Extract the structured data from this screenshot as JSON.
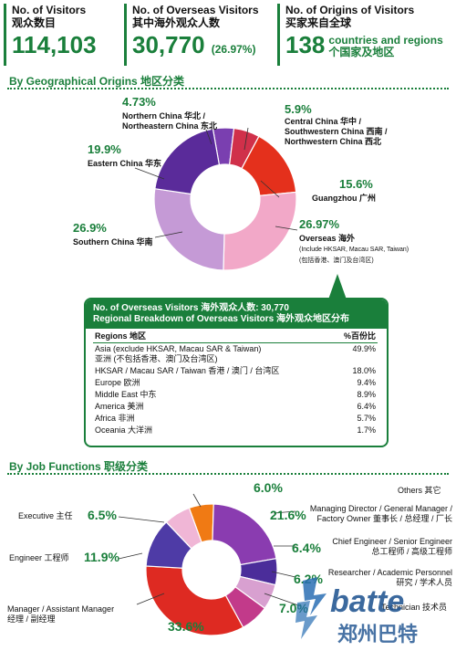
{
  "stats": [
    {
      "label1": "No. of Visitors",
      "label2": "观众数目",
      "value": "114,103"
    },
    {
      "label1": "No. of Overseas Visitors",
      "label2": "其中海外观众人数",
      "value": "30,770",
      "pct": "(26.97%)"
    },
    {
      "label1": "No. of Origins of Visitors",
      "label2": "买家来自全球",
      "value": "138",
      "suffix1": "countries and regions",
      "suffix2": "个国家及地区"
    }
  ],
  "sections": {
    "geo": "By Geographical Origins 地区分类",
    "job": "By Job Functions 职级分类"
  },
  "chart_data": [
    {
      "type": "pie",
      "donut": true,
      "slices": [
        {
          "label1": "Northern China 华北 /",
          "label2": "Northeastern China 东北",
          "value": 4.73,
          "text": "4.73%",
          "color": "#7a3fb0"
        },
        {
          "label1": "Central China 华中 /",
          "label2": "Southwestern China 西南 /",
          "label3": "Northwestern China 西北",
          "value": 5.9,
          "text": "5.9%",
          "color": "#d0304a"
        },
        {
          "label1": "Guangzhou 广州",
          "value": 15.6,
          "text": "15.6%",
          "color": "#e4301c"
        },
        {
          "label1": "Overseas 海外",
          "label2": "(Include HKSAR, Macau SAR, Taiwan)",
          "label3": "(包括香港、澳门及台湾区)",
          "value": 26.97,
          "text": "26.97%",
          "color": "#f2a8c8"
        },
        {
          "label1": "Southern China 华南",
          "value": 26.9,
          "text": "26.9%",
          "color": "#c59ad6"
        },
        {
          "label1": "Eastern China 华东",
          "value": 19.9,
          "text": "19.9%",
          "color": "#5a2b9a"
        }
      ]
    },
    {
      "type": "pie",
      "donut": true,
      "slices": [
        {
          "label1": "Others 其它",
          "value": 6.0,
          "text": "6.0%",
          "color": "#f07a14"
        },
        {
          "label1": "Managing Director / General Manager /",
          "label2": "Factory Owner 董事长 / 总经理 / 厂长",
          "value": 21.6,
          "text": "21.6%",
          "color": "#8a3cb0"
        },
        {
          "label1": "Chief Engineer / Senior Engineer",
          "label2": "总工程师 / 高级工程师",
          "value": 6.4,
          "text": "6.4%",
          "color": "#4b2d9a"
        },
        {
          "label1": "Researcher / Academic Personnel",
          "label2": "研究 / 学术人员",
          "value": 6.2,
          "text": "6.2%",
          "color": "#d8a0d0"
        },
        {
          "label1": "Technician 技术员",
          "value": 7.0,
          "text": "7.0%",
          "color": "#c23a8a"
        },
        {
          "label1": "Manager / Assistant Manager",
          "label2": "经理 / 副经理",
          "value": 33.6,
          "text": "33.6%",
          "color": "#de2a22"
        },
        {
          "label1": "Engineer 工程师",
          "value": 11.9,
          "text": "11.9%",
          "color": "#4e3ba6"
        },
        {
          "label1": "Executive 主任",
          "value": 6.5,
          "text": "6.5%",
          "color": "#f0b6d6"
        }
      ]
    },
    {
      "type": "table",
      "header1": "No. of Overseas Visitors 海外观众人数: 30,770",
      "header2": "Regional Breakdown of Overseas Visitors 海外观众地区分布",
      "columns": [
        "Regions 地区",
        "%百份比"
      ],
      "rows": [
        {
          "r1": "Asia (exclude HKSAR, Macau SAR & Taiwan)",
          "r2": "亚洲 (不包括香港、澳门及台湾区)",
          "p": "49.9%"
        },
        {
          "r1": "HKSAR / Macau SAR / Taiwan 香港 / 澳门 / 台湾区",
          "p": "18.0%"
        },
        {
          "r1": "Europe 欧洲",
          "p": "9.4%"
        },
        {
          "r1": "Middle East 中东",
          "p": "8.9%"
        },
        {
          "r1": "America 美洲",
          "p": "6.4%"
        },
        {
          "r1": "Africa 非洲",
          "p": "5.7%"
        },
        {
          "r1": "Oceania 大洋洲",
          "p": "1.7%"
        }
      ]
    }
  ],
  "logo": {
    "en": "batte",
    "cn": "郑州巴特"
  }
}
